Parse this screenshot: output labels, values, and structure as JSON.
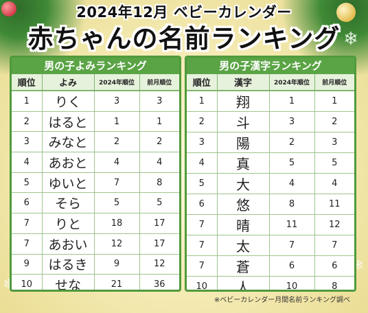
{
  "title_line1": "2024年12月 ベビーカレンダー",
  "title_line2": "赤ちゃんの名前ランキング",
  "footnote": "※ベビーカレンダー月間名前ランキング調べ",
  "left_table": {
    "header": "男の子よみランキング",
    "columns": [
      "順位",
      "よみ",
      "2024年順位",
      "前月順位"
    ],
    "rows": [
      {
        "rank": "1",
        "name": "りく",
        "year_rank": "3",
        "prev_rank": "3"
      },
      {
        "rank": "2",
        "name": "はると",
        "year_rank": "1",
        "prev_rank": "1"
      },
      {
        "rank": "3",
        "name": "みなと",
        "year_rank": "2",
        "prev_rank": "2"
      },
      {
        "rank": "4",
        "name": "あおと",
        "year_rank": "4",
        "prev_rank": "4"
      },
      {
        "rank": "5",
        "name": "ゆいと",
        "year_rank": "7",
        "prev_rank": "8"
      },
      {
        "rank": "6",
        "name": "そら",
        "year_rank": "5",
        "prev_rank": "5"
      },
      {
        "rank": "7",
        "name": "りと",
        "year_rank": "18",
        "prev_rank": "17"
      },
      {
        "rank": "7",
        "name": "あおい",
        "year_rank": "12",
        "prev_rank": "17"
      },
      {
        "rank": "9",
        "name": "はるき",
        "year_rank": "9",
        "prev_rank": "12"
      },
      {
        "rank": "10",
        "name": "せな",
        "year_rank": "21",
        "prev_rank": "36"
      }
    ]
  },
  "right_table": {
    "header": "男の子漢字ランキング",
    "columns": [
      "順位",
      "漢字",
      "2024年順位",
      "前月順位"
    ],
    "rows": [
      {
        "rank": "1",
        "name": "翔",
        "year_rank": "1",
        "prev_rank": "1"
      },
      {
        "rank": "2",
        "name": "斗",
        "year_rank": "3",
        "prev_rank": "2"
      },
      {
        "rank": "3",
        "name": "陽",
        "year_rank": "2",
        "prev_rank": "3"
      },
      {
        "rank": "4",
        "name": "真",
        "year_rank": "5",
        "prev_rank": "5"
      },
      {
        "rank": "5",
        "name": "大",
        "year_rank": "4",
        "prev_rank": "4"
      },
      {
        "rank": "6",
        "name": "悠",
        "year_rank": "8",
        "prev_rank": "11"
      },
      {
        "rank": "7",
        "name": "晴",
        "year_rank": "11",
        "prev_rank": "12"
      },
      {
        "rank": "7",
        "name": "太",
        "year_rank": "7",
        "prev_rank": "7"
      },
      {
        "rank": "7",
        "name": "蒼",
        "year_rank": "6",
        "prev_rank": "6"
      },
      {
        "rank": "10",
        "name": "人",
        "year_rank": "10",
        "prev_rank": "8"
      }
    ]
  }
}
